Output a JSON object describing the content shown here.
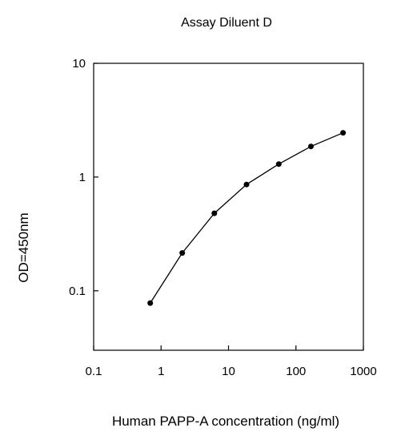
{
  "chart_data": {
    "type": "line",
    "title": "Assay Diluent D",
    "xlabel": "Human PAPP-A concentration (ng/ml)",
    "ylabel": "OD=450nm",
    "x_scale": "log",
    "y_scale": "log",
    "xlim": [
      0.1,
      1000
    ],
    "ylim": [
      0.03,
      10
    ],
    "x_ticks": [
      0.1,
      1,
      10,
      100,
      1000
    ],
    "x_tick_labels": [
      "0.1",
      "1",
      "10",
      "100",
      "1000"
    ],
    "y_ticks": [
      0.1,
      1,
      10
    ],
    "y_tick_labels": [
      "0.1",
      "1",
      "10"
    ],
    "grid": false,
    "legend": "none",
    "series": [
      {
        "x": [
          0.69,
          2.06,
          6.17,
          18.5,
          55.6,
          167,
          500
        ],
        "y": [
          0.078,
          0.215,
          0.48,
          0.86,
          1.3,
          1.86,
          2.45
        ],
        "color": "#000000",
        "marker": "circle"
      }
    ]
  }
}
